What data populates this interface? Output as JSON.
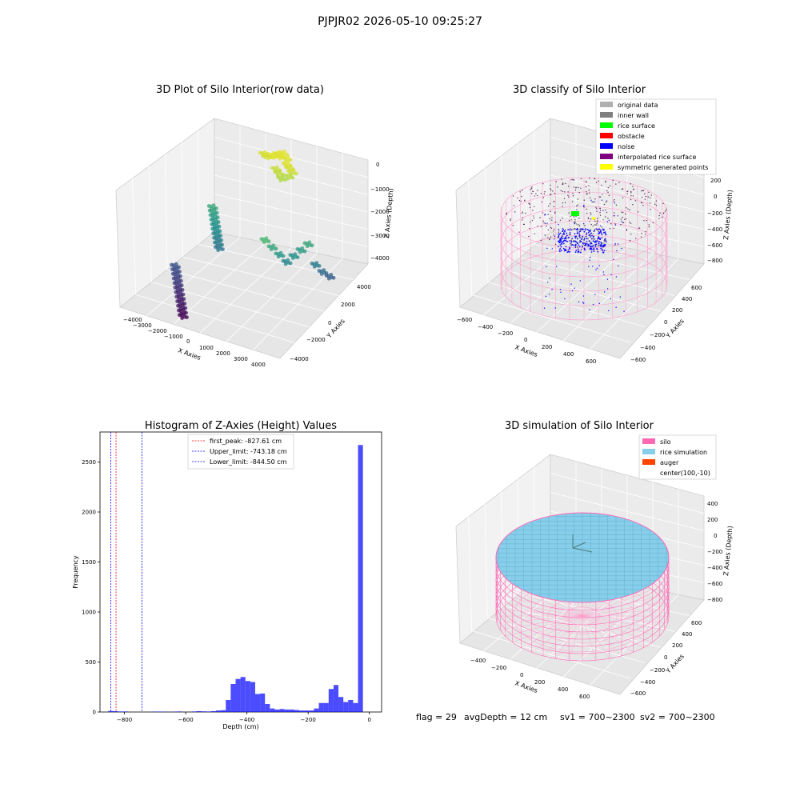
{
  "suptitle": "PJPJR02 2026-05-10 09:25:27",
  "status": {
    "flag": "flag = 29",
    "avg": "avgDepth = 12 cm",
    "sv1": "sv1 = 700~2300",
    "sv2": "sv2 = 700~2300"
  },
  "chart_data": [
    {
      "type": "scatter",
      "title": "3D Plot of Silo Interior(row data)",
      "xlabel": "X Axies",
      "ylabel": "Y Axies",
      "zlabel": "Z Axies (Depth)",
      "xticks": [
        "−4000",
        "−3000",
        "−2000",
        "−1000",
        "0",
        "1000",
        "2000",
        "3000",
        "4000"
      ],
      "yticks": [
        "−4000",
        "−2000",
        "0",
        "2000",
        "4000"
      ],
      "zticks": [
        "0",
        "−1000",
        "−2000",
        "−3000",
        "−4000"
      ],
      "xlim": [
        -4000,
        4000
      ],
      "ylim": [
        -4000,
        4000
      ],
      "zlim": [
        -4500,
        0
      ],
      "colormap": "viridis",
      "series": [
        {
          "cluster": "top-center",
          "x": [
            -300,
            -100,
            100,
            300,
            500,
            700,
            900,
            -500,
            -700,
            200,
            400,
            -200,
            0,
            600,
            800
          ],
          "y": [
            2500,
            2600,
            2700,
            2800,
            2500,
            2400,
            2300,
            2600,
            2700,
            2200,
            2100,
            2900,
            3000,
            2000,
            2200
          ],
          "z": [
            -150,
            -100,
            -120,
            -180,
            -200,
            -250,
            -300,
            -220,
            -260,
            -350,
            -400,
            -200,
            -150,
            -500,
            -450
          ]
        },
        {
          "cluster": "left-mid",
          "x": [
            -1800,
            -1700,
            -1600,
            -1500,
            -1400,
            -1300,
            -1200,
            -1100,
            -1000,
            -900
          ],
          "y": [
            800,
            700,
            600,
            500,
            400,
            300,
            200,
            100,
            0,
            -100
          ],
          "z": [
            -1800,
            -1900,
            -2000,
            -2100,
            -2200,
            -2300,
            -2400,
            -2500,
            -2600,
            -2700
          ]
        },
        {
          "cluster": "left-low",
          "x": [
            -2200,
            -2100,
            -2000,
            -1900,
            -1800,
            -1700,
            -1600,
            -1500,
            -1400,
            -1300,
            -1200,
            -1100
          ],
          "y": [
            -1200,
            -1300,
            -1400,
            -1500,
            -1600,
            -1700,
            -1800,
            -1900,
            -2000,
            -2100,
            -2200,
            -2300
          ],
          "z": [
            -3300,
            -3400,
            -3500,
            -3600,
            -3700,
            -3800,
            -3900,
            -4000,
            -4100,
            -4200,
            -4300,
            -4400
          ]
        },
        {
          "cluster": "right-arc",
          "x": [
            1500,
            1700,
            1900,
            2100,
            2300,
            2500,
            2700,
            2900,
            3100,
            3300
          ],
          "y": [
            -500,
            -300,
            -100,
            100,
            300,
            500,
            700,
            900,
            1100,
            1300
          ],
          "z": [
            -1500,
            -1800,
            -2100,
            -2400,
            -2200,
            -2000,
            -1800,
            -2600,
            -2900,
            -3100
          ]
        }
      ]
    },
    {
      "type": "scatter",
      "title": "3D classify of Silo Interior",
      "xlabel": "X Axies",
      "ylabel": "Y Axies",
      "zlabel": "Z Axies (Depth)",
      "xticks": [
        "−600",
        "−400",
        "−200",
        "0",
        "200",
        "400",
        "600"
      ],
      "yticks": [
        "−600",
        "−400",
        "−200",
        "0",
        "200",
        "400",
        "600"
      ],
      "zticks": [
        "200",
        "0",
        "−200",
        "−400",
        "−600",
        "−800"
      ],
      "xlim": [
        -650,
        650
      ],
      "ylim": [
        -650,
        650
      ],
      "zlim": [
        -900,
        300
      ],
      "legend": [
        "original data",
        "inner wall",
        "rice surface",
        "obstacle",
        "noise",
        "interpolated rice surface",
        "symmetric generated points"
      ],
      "legend_colors": [
        "#b0b0b0",
        "#808080",
        "#00ff00",
        "#ff0000",
        "#0000ff",
        "#800080",
        "#ffff00"
      ],
      "legend_position": "top-right",
      "cylinder": {
        "radius": 650,
        "z_top": -150,
        "z_bottom": -900
      }
    },
    {
      "type": "bar",
      "title": "Histogram of Z-Axies (Height) Values",
      "xlabel": "Depth (cm)",
      "ylabel": "Frequency",
      "xlim": [
        -880,
        40
      ],
      "ylim": [
        0,
        2800
      ],
      "xticks": [
        -800,
        -600,
        -400,
        -200,
        0
      ],
      "xtick_labels": [
        "−800",
        "−600",
        "−400",
        "−200",
        "0"
      ],
      "yticks": [
        0,
        500,
        1000,
        1500,
        2000,
        2500
      ],
      "bar_color": "#0000ff",
      "bin_width": 16,
      "bins": [
        {
          "x": -845,
          "y": 10
        },
        {
          "x": -829,
          "y": 8
        },
        {
          "x": -813,
          "y": 5
        },
        {
          "x": -797,
          "y": 5
        },
        {
          "x": -701,
          "y": 4
        },
        {
          "x": -685,
          "y": 4
        },
        {
          "x": -669,
          "y": 3
        },
        {
          "x": -637,
          "y": 3
        },
        {
          "x": -621,
          "y": 5
        },
        {
          "x": -573,
          "y": 5
        },
        {
          "x": -557,
          "y": 8
        },
        {
          "x": -541,
          "y": 6
        },
        {
          "x": -525,
          "y": 5
        },
        {
          "x": -509,
          "y": 8
        },
        {
          "x": -493,
          "y": 15
        },
        {
          "x": -477,
          "y": 18
        },
        {
          "x": -461,
          "y": 120
        },
        {
          "x": -445,
          "y": 280
        },
        {
          "x": -429,
          "y": 330
        },
        {
          "x": -413,
          "y": 350
        },
        {
          "x": -397,
          "y": 310
        },
        {
          "x": -381,
          "y": 300
        },
        {
          "x": -365,
          "y": 180
        },
        {
          "x": -349,
          "y": 185
        },
        {
          "x": -333,
          "y": 80
        },
        {
          "x": -317,
          "y": 35
        },
        {
          "x": -301,
          "y": 25
        },
        {
          "x": -285,
          "y": 30
        },
        {
          "x": -269,
          "y": 25
        },
        {
          "x": -253,
          "y": 25
        },
        {
          "x": -237,
          "y": 20
        },
        {
          "x": -221,
          "y": 15
        },
        {
          "x": -205,
          "y": 15
        },
        {
          "x": -189,
          "y": 15
        },
        {
          "x": -173,
          "y": 35
        },
        {
          "x": -157,
          "y": 90
        },
        {
          "x": -141,
          "y": 90
        },
        {
          "x": -125,
          "y": 230
        },
        {
          "x": -109,
          "y": 270
        },
        {
          "x": -93,
          "y": 150
        },
        {
          "x": -77,
          "y": 100
        },
        {
          "x": -61,
          "y": 120
        },
        {
          "x": -45,
          "y": 90
        },
        {
          "x": -29,
          "y": 2670
        }
      ],
      "vlines": [
        {
          "label": "first_peak: -827.61 cm",
          "x": -827.61,
          "color": "#ff0000"
        },
        {
          "label": "Upper_limit: -743.18 cm",
          "x": -743.18,
          "color": "#0000ff"
        },
        {
          "label": "Lower_limit: -844.50 cm",
          "x": -844.5,
          "color": "#0000ff"
        }
      ],
      "legend_position": "top-center"
    },
    {
      "type": "area",
      "title": "3D simulation of Silo Interior",
      "xlabel": "X Axies",
      "ylabel": "Y Axies",
      "zlabel": "Z Axies (Depth)",
      "xticks": [
        "−400",
        "−200",
        "0",
        "200",
        "400",
        "600"
      ],
      "yticks": [
        "−600",
        "−400",
        "−200",
        "0",
        "200",
        "400",
        "600"
      ],
      "zticks": [
        "400",
        "200",
        "0",
        "−200",
        "−400",
        "−600",
        "−800"
      ],
      "legend": [
        "silo",
        "rice simulation",
        "auger",
        "center(100,-10)"
      ],
      "legend_colors": [
        "#ff69b4",
        "#87ceeb",
        "#ff4500",
        ""
      ],
      "legend_position": "top-right",
      "center": [
        100,
        -10
      ],
      "surface_depth": 12
    }
  ]
}
